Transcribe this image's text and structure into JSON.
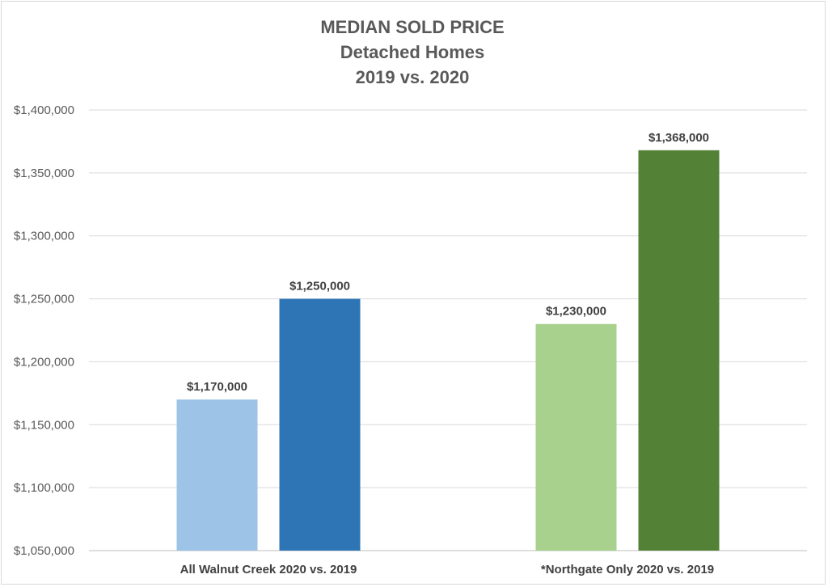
{
  "chart_data": {
    "type": "bar",
    "title_lines": [
      "MEDIAN SOLD PRICE",
      "Detached Homes",
      "2019 vs. 2020"
    ],
    "xlabel": "",
    "ylabel": "",
    "ylim": [
      1050000,
      1400000
    ],
    "y_ticks": [
      1050000,
      1100000,
      1150000,
      1200000,
      1250000,
      1300000,
      1350000,
      1400000
    ],
    "y_tick_labels": [
      "$1,050,000",
      "$1,100,000",
      "$1,150,000",
      "$1,200,000",
      "$1,250,000",
      "$1,300,000",
      "$1,350,000",
      "$1,400,000"
    ],
    "grid": true,
    "categories": [
      "All Walnut Creek 2020 vs. 2019",
      "*Northgate Only 2020 vs. 2019"
    ],
    "bars": [
      {
        "category_index": 0,
        "value": 1170000,
        "label": "$1,170,000",
        "color": "#9dc3e6"
      },
      {
        "category_index": 0,
        "value": 1250000,
        "label": "$1,250,000",
        "color": "#2e75b6"
      },
      {
        "category_index": 1,
        "value": 1230000,
        "label": "$1,230,000",
        "color": "#a9d18e"
      },
      {
        "category_index": 1,
        "value": 1368000,
        "label": "$1,368,000",
        "color": "#538135"
      }
    ]
  }
}
